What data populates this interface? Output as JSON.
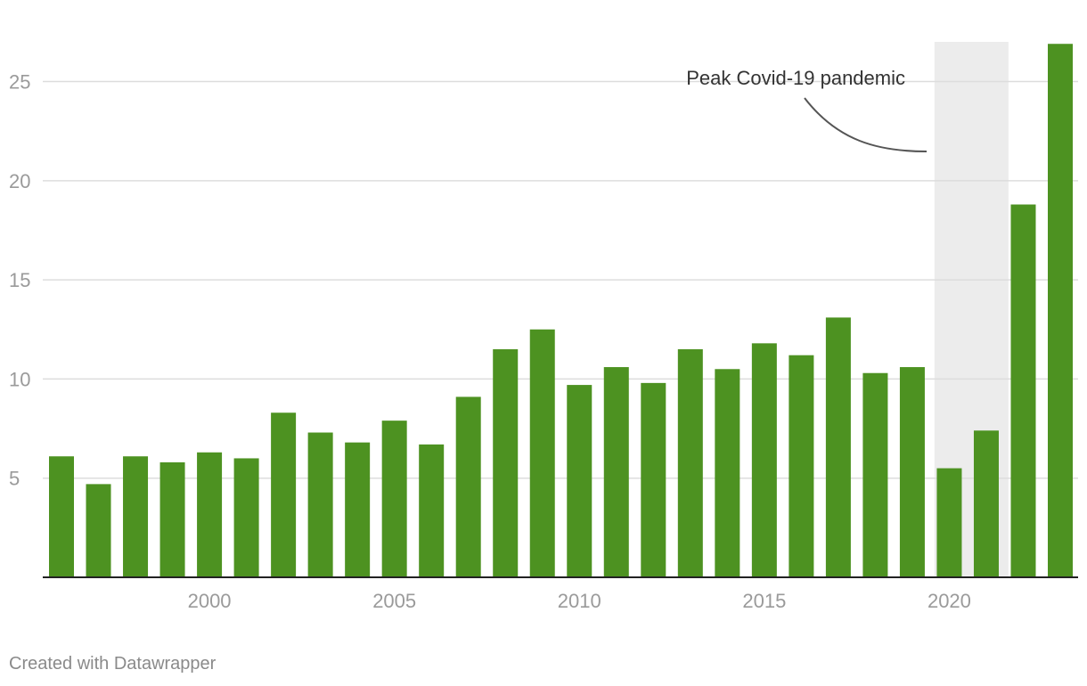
{
  "chart_data": {
    "type": "bar",
    "x": [
      1996,
      1997,
      1998,
      1999,
      2000,
      2001,
      2002,
      2003,
      2004,
      2005,
      2006,
      2007,
      2008,
      2009,
      2010,
      2011,
      2012,
      2013,
      2014,
      2015,
      2016,
      2017,
      2018,
      2019,
      2020,
      2021,
      2022,
      2023
    ],
    "values": [
      6.1,
      4.7,
      6.1,
      5.8,
      6.3,
      6.0,
      8.3,
      7.3,
      6.8,
      7.9,
      6.7,
      9.1,
      11.5,
      12.5,
      9.7,
      10.6,
      9.8,
      11.5,
      10.5,
      11.8,
      11.2,
      13.1,
      10.3,
      10.6,
      5.5,
      7.4,
      18.8,
      26.9
    ],
    "xticks": [
      2000,
      2005,
      2010,
      2015,
      2020
    ],
    "xtick_labels": [
      "2000",
      "2005",
      "2010",
      "2015",
      "2020"
    ],
    "yticks": [
      5,
      10,
      15,
      20,
      25
    ],
    "ytick_labels": [
      "5",
      "10",
      "15",
      "20",
      "25"
    ],
    "ylim": [
      0,
      27
    ],
    "title": "",
    "xlabel": "",
    "ylabel": "",
    "grid": true,
    "bar_color": "#4d9221",
    "highlight": {
      "x_start": 2019.6,
      "x_end": 2021.6,
      "color": "#ececec"
    },
    "annotation": {
      "text": "Peak Covid-19 pandemic"
    }
  },
  "footer": {
    "credit": "Created with Datawrapper"
  }
}
